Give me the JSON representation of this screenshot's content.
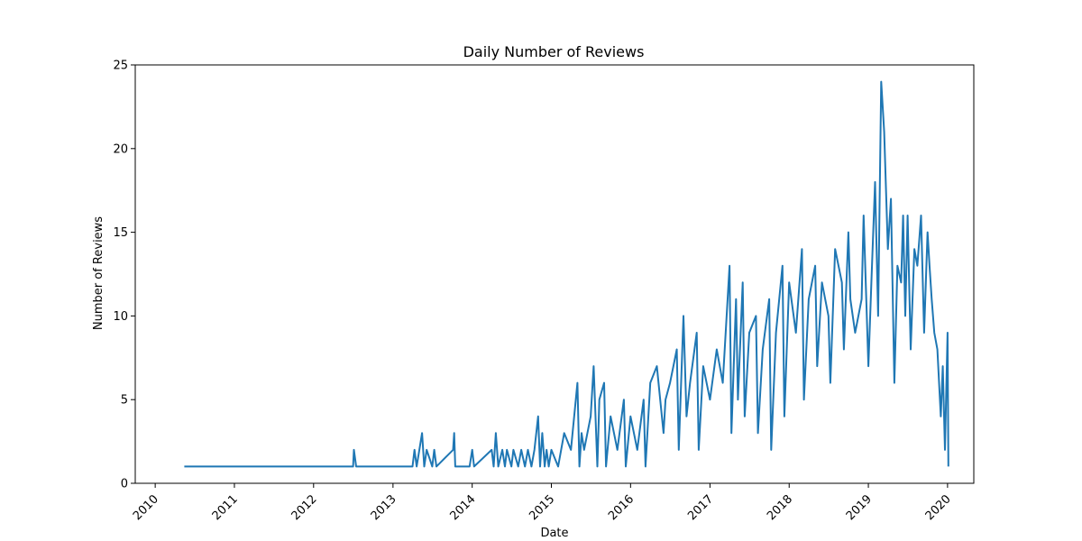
{
  "chart_data": {
    "type": "line",
    "title": "Daily Number of Reviews",
    "xlabel": "Date",
    "ylabel": "Number of Reviews",
    "ylim": [
      0,
      25
    ],
    "xlim": [
      "2009-10-01",
      "2020-05-01"
    ],
    "grid": false,
    "line_color": "#1f77b4",
    "x_ticks": [
      "2010",
      "2011",
      "2012",
      "2013",
      "2014",
      "2015",
      "2016",
      "2017",
      "2018",
      "2019",
      "2020"
    ],
    "y_ticks": [
      "0",
      "5",
      "10",
      "15",
      "20",
      "25"
    ],
    "series": [
      {
        "x": [
          "2010-05-15",
          "2012-07-01",
          "2012-07-05",
          "2012-07-15",
          "2013-04-01",
          "2013-04-10",
          "2013-04-20",
          "2013-05-15",
          "2013-05-25",
          "2013-06-05",
          "2013-07-01",
          "2013-07-10",
          "2013-07-20",
          "2013-10-05",
          "2013-10-10",
          "2013-10-15",
          "2013-12-20",
          "2014-01-01",
          "2014-01-10",
          "2014-04-01",
          "2014-04-10",
          "2014-04-20",
          "2014-05-01",
          "2014-05-20",
          "2014-06-01",
          "2014-06-10",
          "2014-07-01",
          "2014-07-10",
          "2014-08-01",
          "2014-08-15",
          "2014-09-01",
          "2014-09-15",
          "2014-10-01",
          "2014-10-15",
          "2014-11-01",
          "2014-11-10",
          "2014-11-20",
          "2014-12-01",
          "2014-12-10",
          "2014-12-20",
          "2015-01-01",
          "2015-02-01",
          "2015-03-01",
          "2015-04-01",
          "2015-05-01",
          "2015-05-10",
          "2015-05-20",
          "2015-06-01",
          "2015-07-01",
          "2015-07-15",
          "2015-08-01",
          "2015-08-10",
          "2015-09-01",
          "2015-09-10",
          "2015-10-01",
          "2015-11-01",
          "2015-12-01",
          "2015-12-10",
          "2016-01-01",
          "2016-02-01",
          "2016-03-01",
          "2016-03-10",
          "2016-04-01",
          "2016-05-01",
          "2016-06-01",
          "2016-06-10",
          "2016-07-01",
          "2016-08-01",
          "2016-08-10",
          "2016-09-01",
          "2016-09-15",
          "2016-10-01",
          "2016-11-01",
          "2016-11-10",
          "2016-12-01",
          "2017-01-01",
          "2017-02-01",
          "2017-03-01",
          "2017-04-01",
          "2017-04-10",
          "2017-05-01",
          "2017-05-10",
          "2017-06-01",
          "2017-06-10",
          "2017-07-01",
          "2017-08-01",
          "2017-08-10",
          "2017-09-01",
          "2017-10-01",
          "2017-10-10",
          "2017-11-01",
          "2017-12-01",
          "2017-12-10",
          "2018-01-01",
          "2018-02-01",
          "2018-03-01",
          "2018-03-10",
          "2018-04-01",
          "2018-05-01",
          "2018-05-10",
          "2018-06-01",
          "2018-07-01",
          "2018-07-10",
          "2018-08-01",
          "2018-09-01",
          "2018-09-10",
          "2018-10-01",
          "2018-10-10",
          "2018-11-01",
          "2018-12-01",
          "2018-12-10",
          "2019-01-01",
          "2019-01-15",
          "2019-02-01",
          "2019-02-15",
          "2019-03-01",
          "2019-03-15",
          "2019-04-01",
          "2019-04-15",
          "2019-05-01",
          "2019-05-15",
          "2019-06-01",
          "2019-06-10",
          "2019-06-20",
          "2019-07-01",
          "2019-07-15",
          "2019-08-01",
          "2019-08-15",
          "2019-09-01",
          "2019-09-15",
          "2019-10-01",
          "2019-10-10",
          "2019-10-20",
          "2019-11-01",
          "2019-11-15",
          "2019-12-01",
          "2019-12-10",
          "2019-12-20",
          "2020-01-01",
          "2020-01-05"
        ],
        "values": [
          1,
          1,
          2,
          1,
          1,
          2,
          1,
          3,
          1,
          2,
          1,
          2,
          1,
          2,
          3,
          1,
          1,
          2,
          1,
          2,
          1,
          3,
          1,
          2,
          1,
          2,
          1,
          2,
          1,
          2,
          1,
          2,
          1,
          2,
          4,
          1,
          3,
          1,
          2,
          1,
          2,
          1,
          3,
          2,
          6,
          1,
          3,
          2,
          4,
          7,
          1,
          5,
          6,
          1,
          4,
          2,
          5,
          1,
          4,
          2,
          5,
          1,
          6,
          7,
          3,
          5,
          6,
          8,
          2,
          10,
          4,
          6,
          9,
          2,
          7,
          5,
          8,
          6,
          13,
          3,
          11,
          5,
          12,
          4,
          9,
          10,
          3,
          8,
          11,
          2,
          9,
          13,
          4,
          12,
          9,
          14,
          5,
          11,
          13,
          7,
          12,
          10,
          6,
          14,
          12,
          8,
          15,
          11,
          9,
          11,
          16,
          7,
          12,
          18,
          10,
          24,
          21,
          14,
          17,
          6,
          13,
          12,
          16,
          10,
          16,
          8,
          14,
          13,
          16,
          9,
          15,
          13,
          11,
          9,
          8,
          4,
          7,
          2,
          9,
          1
        ]
      }
    ]
  }
}
